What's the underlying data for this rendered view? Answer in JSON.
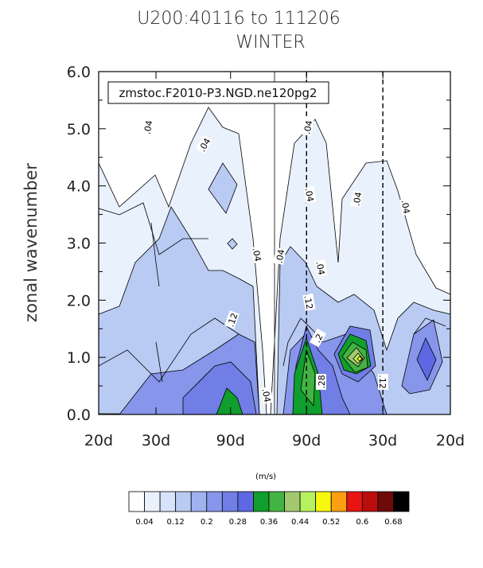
{
  "chart_data": {
    "type": "heatmap",
    "title": "U200:40116 to 111206",
    "subtitle": "WINTER",
    "annotation_box": "zmstoc.F2010-P3.NGD.ne120pg2",
    "ylabel": "zonal wavenumber",
    "xlabel": "",
    "ylim": [
      0,
      6
    ],
    "yticks": [
      "0.0",
      "1.0",
      "2.0",
      "3.0",
      "4.0",
      "5.0",
      "6.0"
    ],
    "xtick_labels": [
      "20d",
      "30d",
      "90d",
      "90d",
      "30d",
      "20d"
    ],
    "colorbar_title": "(m/s)",
    "levels": [
      0.04,
      0.08,
      0.12,
      0.16,
      0.2,
      0.24,
      0.28,
      0.32,
      0.36,
      0.4,
      0.44,
      0.48,
      0.52,
      0.56,
      0.6,
      0.64,
      0.68
    ],
    "colorbar_labels": [
      "0.04",
      "0.12",
      "0.2",
      "0.28",
      "0.36",
      "0.44",
      "0.52",
      "0.6",
      "0.68"
    ],
    "colors": [
      "#ffffff",
      "#e8f1fc",
      "#d6e3fa",
      "#b9cbf3",
      "#9fb1ee",
      "#8796ea",
      "#717ee6",
      "#5d68e2",
      "#109e2c",
      "#43b443",
      "#a3c96e",
      "#b6f25f",
      "#f8f710",
      "#fba012",
      "#e81414",
      "#bc0d0d",
      "#6e0a0a",
      "#000000"
    ],
    "contour_labels": [
      ".04",
      ".04",
      ".04",
      ".04",
      ".04",
      ".04",
      ".04",
      ".04",
      ".04",
      ".04",
      ".12",
      ".12",
      ".12",
      ".2",
      ".28"
    ],
    "vertical_lines": {
      "solid": "center",
      "dashed": [
        "90d",
        "30d"
      ]
    },
    "grid": false
  }
}
